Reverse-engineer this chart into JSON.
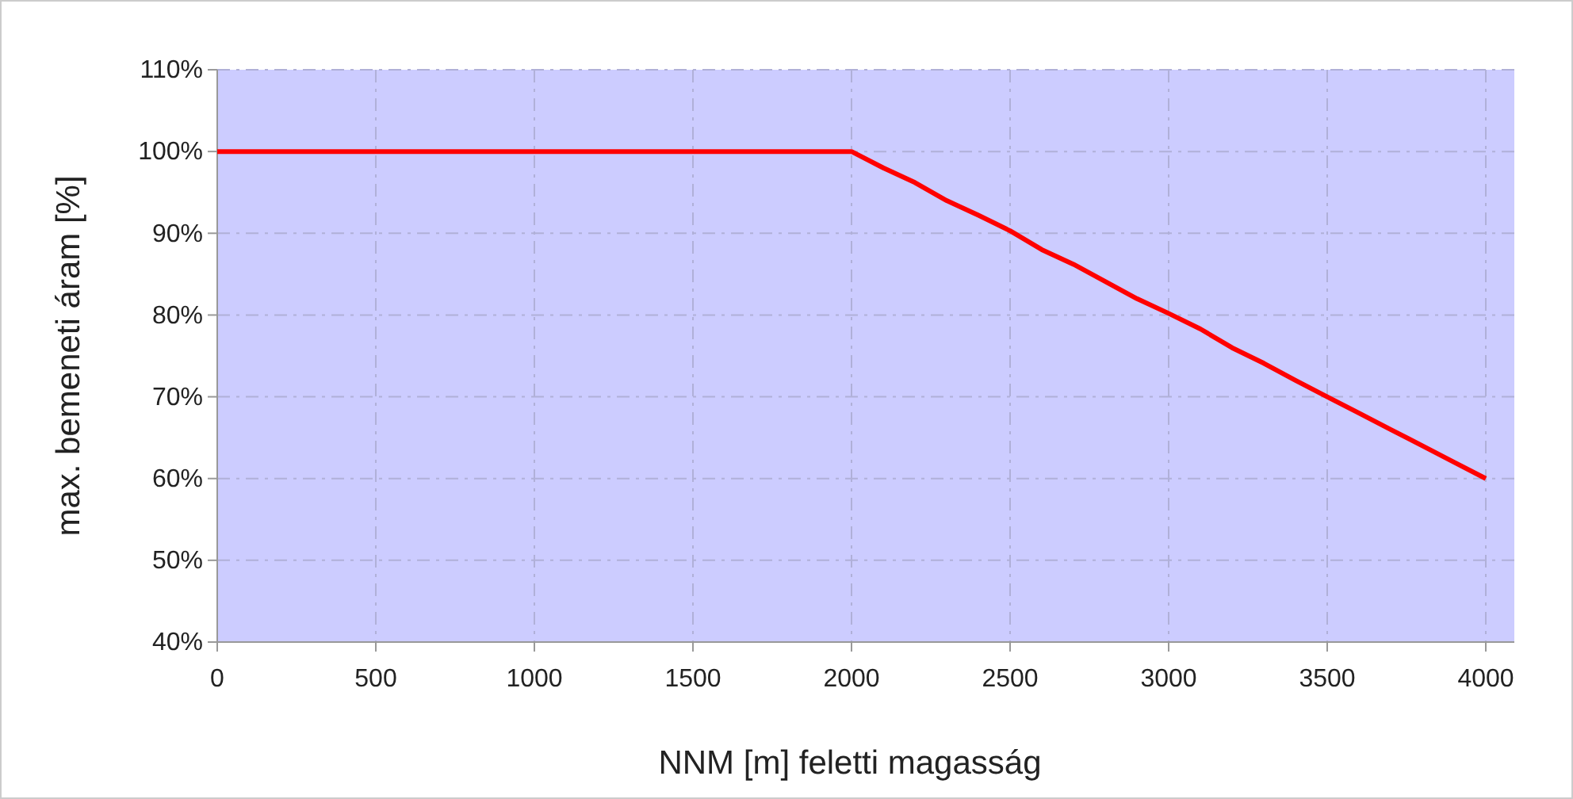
{
  "chart_data": {
    "type": "line",
    "xlabel": "NNM [m] feletti magasság",
    "ylabel": "max. bemeneti áram [%]",
    "x": [
      0,
      2000,
      2100,
      2200,
      2300,
      2400,
      2500,
      2600,
      2700,
      2800,
      2900,
      3000,
      3100,
      3200,
      3300,
      3400,
      3500,
      3600,
      3700,
      3800,
      3900,
      4000
    ],
    "series": [
      {
        "color": "#ff0000",
        "values": [
          100,
          100,
          98,
          96.2,
          94,
          92.2,
          90.3,
          88,
          86.2,
          84.1,
          82,
          80.2,
          78.3,
          76,
          74.1,
          72,
          70,
          68,
          66,
          64,
          62,
          60
        ]
      }
    ],
    "xlim": [
      0,
      4090
    ],
    "xticks": [
      0,
      500,
      1000,
      1500,
      2000,
      2500,
      3000,
      3500,
      4000
    ],
    "ylim": [
      40,
      110
    ],
    "yticks": [
      {
        "value": 40,
        "label": "40%"
      },
      {
        "value": 50,
        "label": "50%"
      },
      {
        "value": 60,
        "label": "60%"
      },
      {
        "value": 70,
        "label": "70%"
      },
      {
        "value": 80,
        "label": "80%"
      },
      {
        "value": 90,
        "label": "90%"
      },
      {
        "value": 100,
        "label": "100%"
      },
      {
        "value": 110,
        "label": "110%"
      }
    ],
    "grid": true,
    "marker": "none",
    "line_style": "solid"
  }
}
